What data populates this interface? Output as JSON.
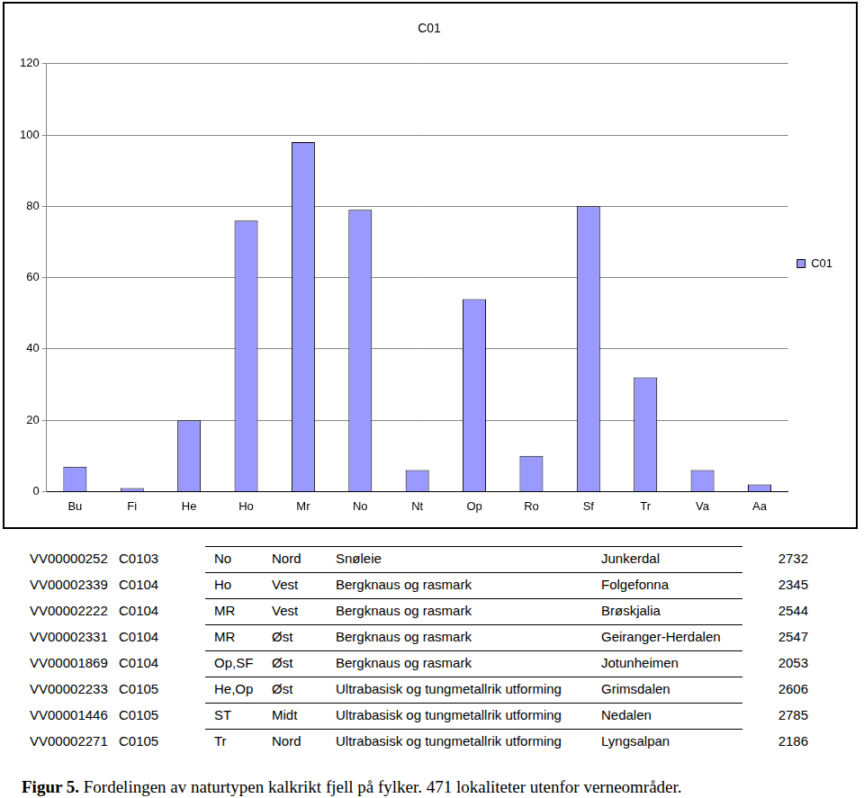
{
  "chart_data": {
    "type": "bar",
    "title": "C01",
    "categories": [
      "Bu",
      "Fi",
      "He",
      "Ho",
      "Mr",
      "No",
      "Nt",
      "Op",
      "Ro",
      "Sf",
      "Tr",
      "Va",
      "Aa"
    ],
    "series": [
      {
        "name": "C01",
        "color": "#9999ff",
        "values": [
          7,
          1,
          20,
          76,
          98,
          79,
          6,
          54,
          10,
          80,
          32,
          6,
          2
        ]
      }
    ],
    "ylim": [
      0,
      120
    ],
    "yticks": [
      0,
      20,
      40,
      60,
      80,
      100,
      120
    ],
    "grid": true,
    "legend": "right"
  },
  "table": {
    "rows": [
      [
        "VV00000252",
        "C0103",
        "No",
        "Nord",
        "Snøleie",
        "Junkerdal",
        2732
      ],
      [
        "VV00002339",
        "C0104",
        "Ho",
        "Vest",
        "Bergknaus og rasmark",
        "Folgefonna",
        2345
      ],
      [
        "VV00002222",
        "C0104",
        "MR",
        "Vest",
        "Bergknaus og rasmark",
        "Brøskjalia",
        2544
      ],
      [
        "VV00002331",
        "C0104",
        "MR",
        "Øst",
        "Bergknaus og rasmark",
        "Geiranger-Herdalen",
        2547
      ],
      [
        "VV00001869",
        "C0104",
        "Op,SF",
        "Øst",
        "Bergknaus og rasmark",
        "Jotunheimen",
        2053
      ],
      [
        "VV00002233",
        "C0105",
        "He,Op",
        "Øst",
        "Ultrabasisk og tungmetallrik utforming",
        "Grimsdalen",
        2606
      ],
      [
        "VV00001446",
        "C0105",
        "ST",
        "Midt",
        "Ultrabasisk og tungmetallrik utforming",
        "Nedalen",
        2785
      ],
      [
        "VV00002271",
        "C0105",
        "Tr",
        "Nord",
        "Ultrabasisk og tungmetallrik utforming",
        "Lyngsalpan",
        2186
      ]
    ]
  },
  "caption": {
    "label": "Figur 5.",
    "text": "Fordelingen av naturtypen kalkrikt fjell på fylker. 471 lokaliteter utenfor verneområder."
  }
}
